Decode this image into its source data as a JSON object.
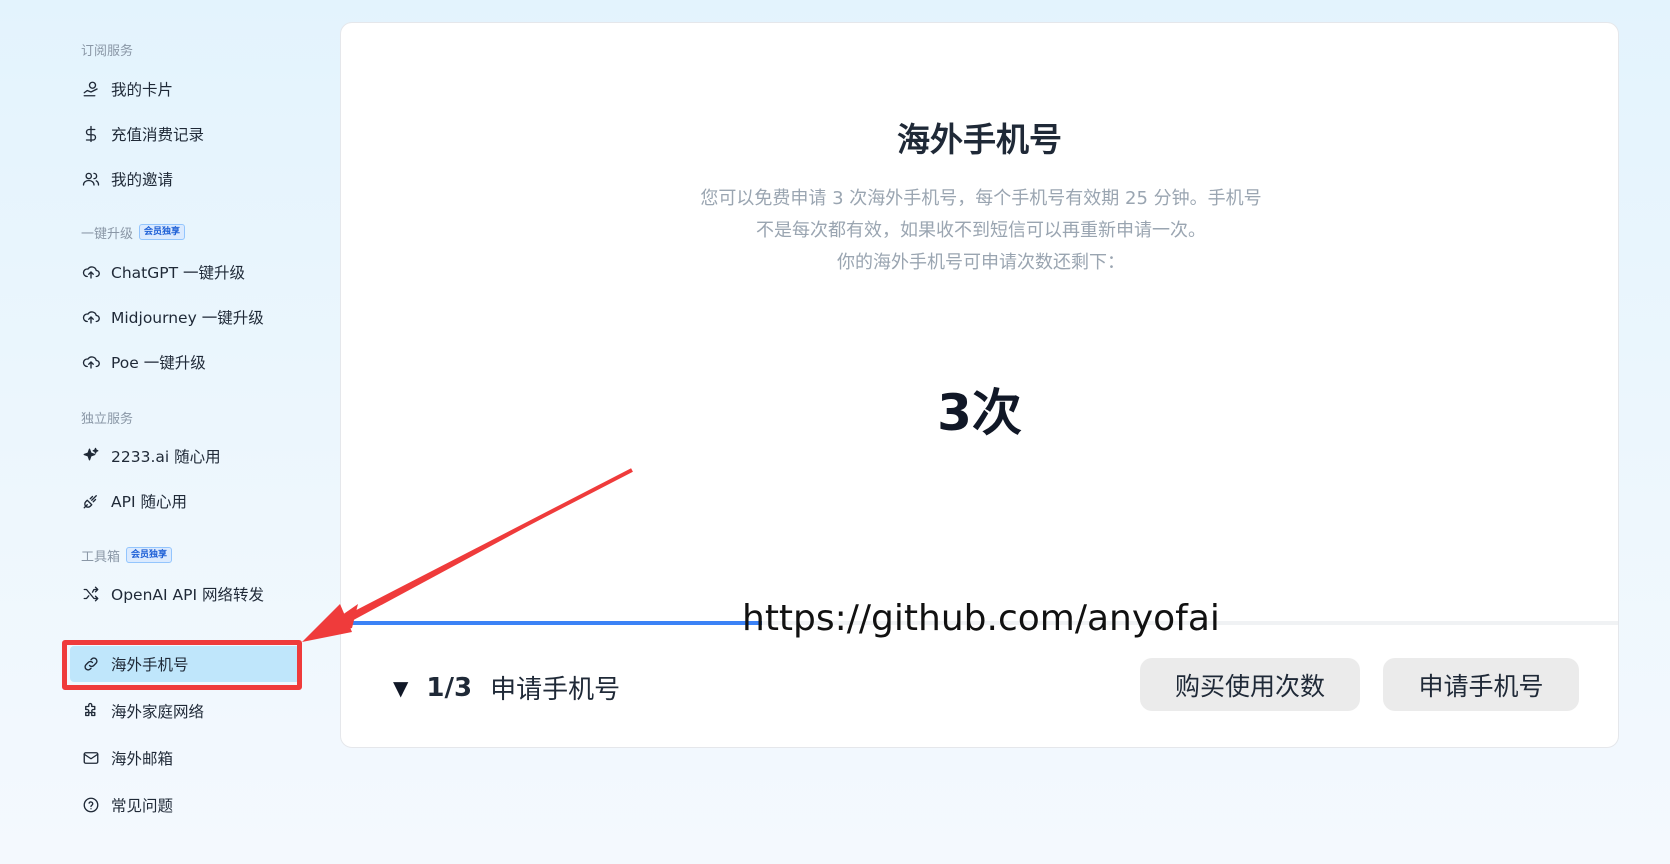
{
  "sidebar": {
    "groups": {
      "subscription": {
        "label": "订阅服务"
      },
      "upgrade": {
        "label": "一键升级",
        "badge": "会员独享"
      },
      "standalone": {
        "label": "独立服务"
      },
      "toolbox": {
        "label": "工具箱",
        "badge": "会员独享"
      }
    },
    "items": [
      {
        "label": "我的卡片",
        "icon": "coins-icon"
      },
      {
        "label": "充值消费记录",
        "icon": "dollar-icon"
      },
      {
        "label": "我的邀请",
        "icon": "users-icon"
      },
      {
        "label": "ChatGPT 一键升级",
        "icon": "cloud-upload-icon"
      },
      {
        "label": "Midjourney 一键升级",
        "icon": "cloud-upload-icon"
      },
      {
        "label": "Poe 一键升级",
        "icon": "cloud-upload-icon"
      },
      {
        "label": "2233.ai 随心用",
        "icon": "sparkle-icon"
      },
      {
        "label": "API 随心用",
        "icon": "plug-icon"
      },
      {
        "label": "OpenAI API 网络转发",
        "icon": "shuffle-icon"
      },
      {
        "label": "海外手机号",
        "icon": "link-icon"
      },
      {
        "label": "海外家庭网络",
        "icon": "puzzle-icon"
      },
      {
        "label": "海外邮箱",
        "icon": "mail-icon"
      },
      {
        "label": "常见问题",
        "icon": "help-circle-icon"
      }
    ],
    "active_item": "海外手机号"
  },
  "main": {
    "title": "海外手机号",
    "description_line1": "您可以免费申请 3 次海外手机号，每个手机号有效期 25 分钟。手机号",
    "description_line2": "不是每次都有效，如果收不到短信可以再重新申请一次。",
    "description_line3": "你的海外手机号可申请次数还剩下：",
    "remaining_count": "3次",
    "progress_fraction": 0.33,
    "step_indicator": "1/3",
    "step_label": "申请手机号",
    "buy_button": "购买使用次数",
    "apply_button": "申请手机号"
  },
  "overlay": {
    "watermark": "https://github.com/anyofai"
  },
  "colors": {
    "accent": "#3b82f6",
    "active_bg": "#bfe6fb",
    "annotation_red": "#ef3b3b"
  }
}
